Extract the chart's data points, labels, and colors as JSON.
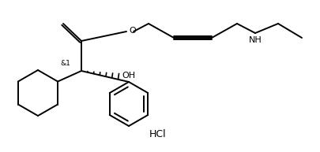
{
  "title": "",
  "background_color": "#ffffff",
  "line_color": "#000000",
  "text_color": "#000000",
  "figsize": [
    4.05,
    1.93
  ],
  "dpi": 100,
  "hcl_label": "HCl",
  "oh_label": "OH",
  "nh_label": "NH",
  "o_label": "O",
  "stereo_label": "&1"
}
